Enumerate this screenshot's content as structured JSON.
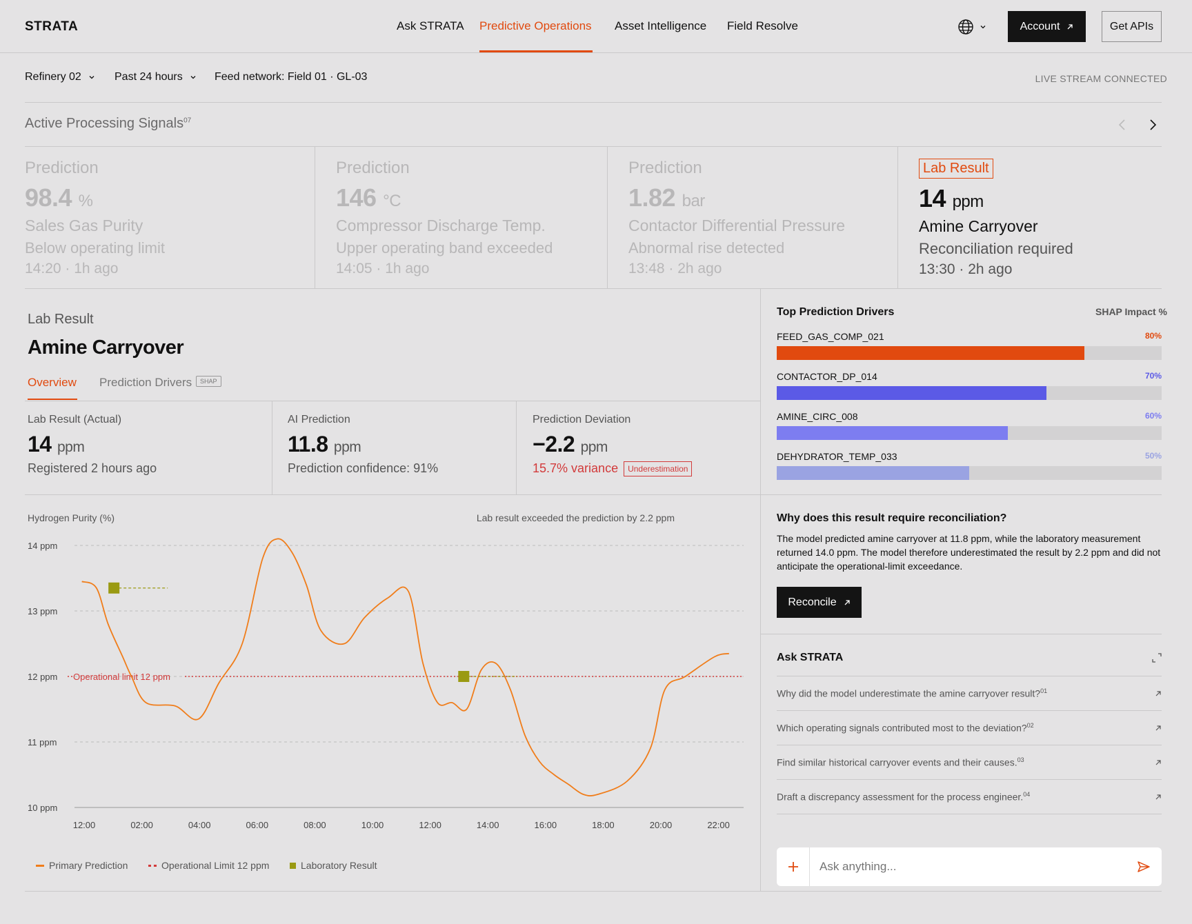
{
  "brand": "STRATA",
  "nav": {
    "items": [
      "Ask STRATA",
      "Predictive Operations",
      "Asset Intelligence",
      "Field Resolve"
    ],
    "active": "Predictive Operations",
    "account_label": "Account",
    "get_apis_label": "Get APIs"
  },
  "filters": {
    "site": "Refinery 02",
    "range": "Past 24 hours",
    "feed": "Feed network: Field 01 · GL-03",
    "live_status": "LIVE STREAM CONNECTED"
  },
  "signals": {
    "title": "Active Processing Signals",
    "count": "07",
    "cards": [
      {
        "kind": "Prediction",
        "value": "98.4",
        "unit": "%",
        "name": "Sales Gas Purity",
        "status": "Below operating limit",
        "time": "14:20 · 1h ago",
        "active": false
      },
      {
        "kind": "Prediction",
        "value": "146",
        "unit": "°C",
        "name": "Compressor Discharge Temp.",
        "status": "Upper operating band exceeded",
        "time": "14:05 · 1h ago",
        "active": false
      },
      {
        "kind": "Prediction",
        "value": "1.82",
        "unit": "bar",
        "name": "Contactor Differential Pressure",
        "status": "Abnormal rise detected",
        "time": "13:48 · 2h ago",
        "active": false
      },
      {
        "kind": "Lab Result",
        "value": "14",
        "unit": "ppm",
        "name": "Amine Carryover",
        "status": "Reconciliation required",
        "time": "13:30 · 2h ago",
        "active": true
      }
    ]
  },
  "detail": {
    "eyebrow": "Lab Result",
    "title": "Amine Carryover",
    "tabs": [
      "Overview",
      "Prediction Drivers"
    ],
    "tab_badge": "SHAP",
    "metrics": [
      {
        "label": "Lab Result (Actual)",
        "value": "14",
        "unit": "ppm",
        "sub": "Registered 2 hours ago"
      },
      {
        "label": "AI Prediction",
        "value": "11.8",
        "unit": "ppm",
        "sub": "Prediction confidence: 91%"
      },
      {
        "label": "Prediction Deviation",
        "value": "−2.2",
        "unit": "ppm",
        "sub": "15.7% variance",
        "badge": "Underestimation"
      }
    ]
  },
  "chart_header": {
    "title": "Hydrogen Purity (%)",
    "note": "Lab result exceeded the prediction by 2.2 ppm"
  },
  "chart_data": {
    "type": "line",
    "ylabel": "",
    "ylim": [
      10,
      14
    ],
    "y_ticks": [
      "14 ppm",
      "13 ppm",
      "12 ppm",
      "11 ppm",
      "10 ppm"
    ],
    "x_ticks": [
      "12:00",
      "02:00",
      "04:00",
      "06:00",
      "08:00",
      "10:00",
      "12:00",
      "14:00",
      "16:00",
      "18:00",
      "20:00",
      "22:00"
    ],
    "series": [
      {
        "name": "Primary Prediction",
        "color": "#f07d1a",
        "x": [
          0.3,
          0.8,
          1.2,
          1.7,
          2.0,
          2.5,
          3.5,
          4.3,
          5.0,
          5.8,
          6.5,
          7.0,
          7.5,
          8.0,
          8.5,
          9.3,
          10.0,
          10.8,
          11.5,
          12.0,
          12.5,
          13.0,
          13.5,
          14.0,
          14.5,
          15.0,
          15.5,
          16.0,
          16.5,
          17.0,
          17.5,
          18.0,
          19.0,
          19.8,
          20.3,
          21.0,
          22.0,
          22.5
        ],
        "y": [
          13.45,
          13.35,
          12.8,
          12.3,
          12.0,
          11.6,
          11.55,
          11.35,
          11.9,
          12.5,
          13.8,
          14.1,
          13.9,
          13.4,
          12.7,
          12.5,
          12.9,
          13.2,
          13.3,
          12.2,
          11.6,
          11.6,
          11.5,
          12.1,
          12.2,
          11.8,
          11.1,
          10.7,
          10.5,
          10.35,
          10.2,
          10.2,
          10.4,
          10.9,
          11.8,
          12.0,
          12.3,
          12.35
        ]
      },
      {
        "name": "Operational Limit 12 ppm",
        "color": "#d23a3a",
        "y_constant": 12
      },
      {
        "name": "Laboratory Result",
        "color": "#9a9a12",
        "x": [
          1.4,
          13.4
        ],
        "y": [
          13.35,
          12.0
        ]
      }
    ],
    "annotations": [
      "Operational limit 12 ppm"
    ],
    "legend": "bottom-left"
  },
  "drivers": {
    "title": "Top Prediction Drivers",
    "metric_label": "SHAP Impact %",
    "items": [
      {
        "name": "FEED_GAS_COMP_021",
        "pct": "80%",
        "value": 0.8,
        "color": "#e14a0f"
      },
      {
        "name": "CONTACTOR_DP_014",
        "pct": "70%",
        "value": 0.7,
        "color": "#5b5ae6"
      },
      {
        "name": "AMINE_CIRC_008",
        "pct": "60%",
        "value": 0.6,
        "color": "#7d7df0"
      },
      {
        "name": "DEHYDRATOR_TEMP_033",
        "pct": "50%",
        "value": 0.5,
        "color": "#9aa3e2"
      }
    ]
  },
  "reconcile": {
    "title": "Why does this result require reconciliation?",
    "body": "The model predicted amine carryover at 11.8 ppm, while the laboratory measurement returned 14.0 ppm. The model therefore underestimated the result by 2.2 ppm and did not anticipate the operational-limit exceedance.",
    "button": "Reconcile"
  },
  "ask": {
    "title": "Ask STRATA",
    "questions": [
      {
        "text": "Why did the model underestimate the amine carryover result?",
        "num": "01"
      },
      {
        "text": "Which operating signals contributed most to the deviation?",
        "num": "02"
      },
      {
        "text": "Find similar historical carryover events and their causes.",
        "num": "03"
      },
      {
        "text": "Draft a discrepancy assessment for the process engineer.",
        "num": "04"
      }
    ],
    "placeholder": "Ask anything..."
  }
}
